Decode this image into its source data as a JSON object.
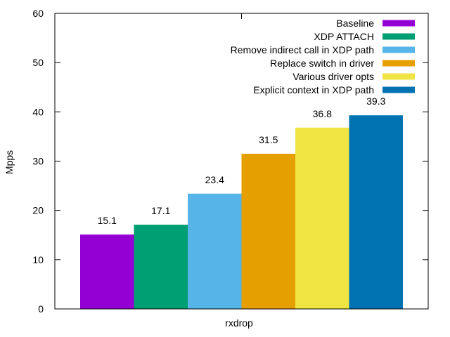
{
  "chart_data": {
    "type": "bar",
    "ylabel": "Mpps",
    "ylim": [
      0,
      60
    ],
    "yticks": [
      0,
      10,
      20,
      30,
      40,
      50,
      60
    ],
    "categories": [
      "rxdrop"
    ],
    "grid": false,
    "legend_position": "top-right",
    "series": [
      {
        "name": "Baseline",
        "values": [
          15.1
        ],
        "label": "15.1",
        "color": "#9400d3"
      },
      {
        "name": "XDP ATTACH",
        "values": [
          17.1
        ],
        "label": "17.1",
        "color": "#009e73"
      },
      {
        "name": "Remove indirect call in XDP path",
        "values": [
          23.4
        ],
        "label": "23.4",
        "color": "#56b4e9"
      },
      {
        "name": "Replace switch in driver",
        "values": [
          31.5
        ],
        "label": "31.5",
        "color": "#e69f00"
      },
      {
        "name": "Various driver opts",
        "values": [
          36.8
        ],
        "label": "36.8",
        "color": "#f0e442"
      },
      {
        "name": "Explicit context in XDP path",
        "values": [
          39.3
        ],
        "label": "39.3",
        "color": "#0072b2"
      }
    ]
  }
}
